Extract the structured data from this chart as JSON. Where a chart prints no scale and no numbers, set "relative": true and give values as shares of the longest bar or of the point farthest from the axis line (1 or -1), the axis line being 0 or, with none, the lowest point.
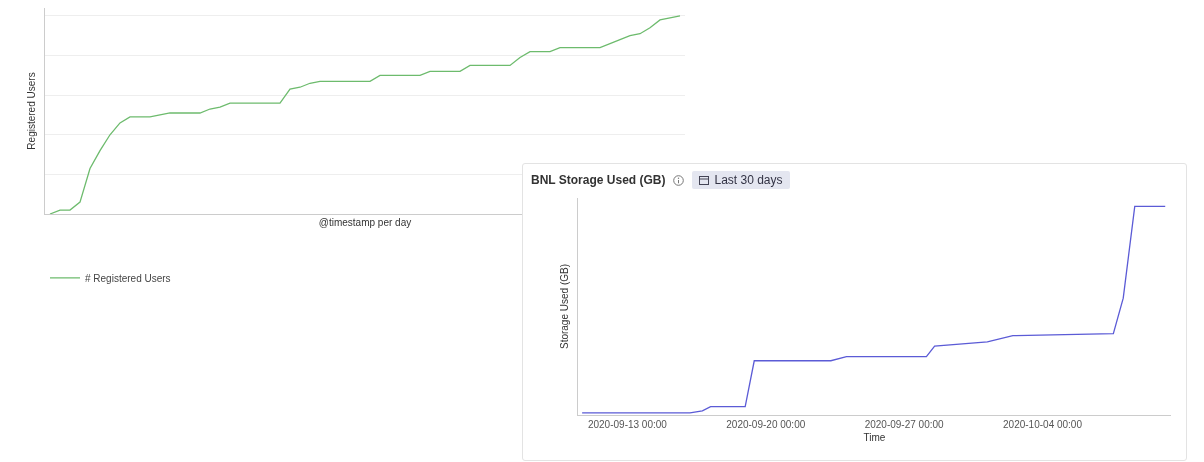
{
  "chart_data": [
    {
      "type": "line",
      "ylabel": "Registered Users",
      "xlabel": "@timestamp per day",
      "relative": true,
      "grid": "y",
      "tick_labels": false,
      "legend": "bottom left",
      "marker": "none",
      "line_style": "solid",
      "categories": [
        null,
        null,
        null,
        null,
        null,
        null,
        null,
        null,
        null,
        null,
        null,
        null,
        null,
        null,
        null,
        null,
        null,
        null,
        null,
        null,
        null,
        null,
        null,
        null,
        null,
        null,
        null,
        null,
        null,
        null,
        null,
        null,
        null,
        null,
        null,
        null,
        null,
        null,
        null,
        null,
        null,
        null,
        null,
        null,
        null,
        null,
        null,
        null,
        null,
        null,
        null,
        null,
        null,
        null,
        null,
        null,
        null,
        null,
        null,
        null,
        null,
        null,
        null,
        null
      ],
      "series": [
        {
          "name": "# Registered Users",
          "color": "#6dbb6d",
          "values": [
            0,
            0.02,
            0.02,
            0.06,
            0.23,
            0.32,
            0.4,
            0.46,
            0.49,
            0.49,
            0.49,
            0.5,
            0.51,
            0.51,
            0.51,
            0.51,
            0.53,
            0.54,
            0.56,
            0.56,
            0.56,
            0.56,
            0.56,
            0.56,
            0.63,
            0.64,
            0.66,
            0.67,
            0.67,
            0.67,
            0.67,
            0.67,
            0.67,
            0.7,
            0.7,
            0.7,
            0.7,
            0.7,
            0.72,
            0.72,
            0.72,
            0.72,
            0.75,
            0.75,
            0.75,
            0.75,
            0.75,
            0.79,
            0.82,
            0.82,
            0.82,
            0.84,
            0.84,
            0.84,
            0.84,
            0.84,
            0.86,
            0.88,
            0.9,
            0.91,
            0.94,
            0.98,
            0.99,
            1
          ]
        }
      ]
    },
    {
      "type": "line",
      "title": "BNL Storage Used (GB)",
      "ylabel": "Storage Used (GB)",
      "xlabel": "Time",
      "relative": true,
      "grid": false,
      "tick_labels": "x",
      "marker": "none",
      "line_style": "solid",
      "annotations": [
        "Last 30 days"
      ],
      "x": [
        "2020-09-10T17:00",
        "2020-09-16T04:00",
        "2020-09-16T19:00",
        "2020-09-17T05:00",
        "2020-09-18T23:00",
        "2020-09-19T10:00",
        "2020-09-23T07:00",
        "2020-09-24T02:00",
        "2020-09-28T03:00",
        "2020-09-28T13:00",
        "2020-10-01T05:00",
        "2020-10-02T12:00",
        "2020-10-07T14:00",
        "2020-10-08T02:00",
        "2020-10-08T16:00",
        "2020-10-10T05:00"
      ],
      "xlim": [
        "2020-09-10T12:00",
        "2020-10-10T12:00"
      ],
      "xticks": [
        {
          "value": "2020-09-13",
          "label": "2020-09-13 00:00"
        },
        {
          "value": "2020-09-20",
          "label": "2020-09-20 00:00"
        },
        {
          "value": "2020-09-27",
          "label": "2020-09-27 00:00"
        },
        {
          "value": "2020-10-04",
          "label": "2020-10-04 00:00"
        }
      ],
      "series": [
        {
          "color": "#5b5bd6",
          "values": [
            0.01,
            0.01,
            0.02,
            0.04,
            0.04,
            0.26,
            0.26,
            0.28,
            0.28,
            0.33,
            0.35,
            0.38,
            0.39,
            0.56,
            1,
            1
          ]
        }
      ]
    }
  ]
}
